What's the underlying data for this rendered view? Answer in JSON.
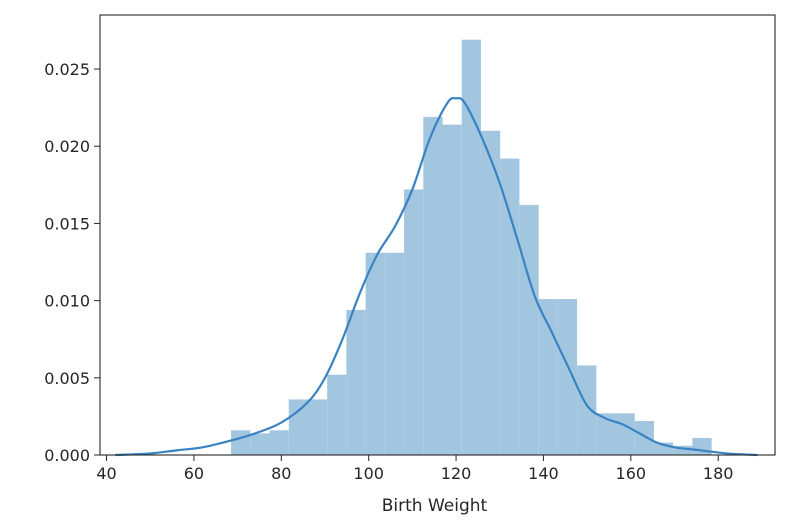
{
  "chart_data": {
    "type": "bar",
    "title": "",
    "xlabel": "Birth Weight",
    "ylabel": "",
    "xlim": [
      38.5,
      193
    ],
    "ylim": [
      0,
      0.0285
    ],
    "xticks": [
      40,
      60,
      80,
      100,
      120,
      140,
      160,
      180
    ],
    "yticks": [
      0.0,
      0.005,
      0.01,
      0.015,
      0.02,
      0.025
    ],
    "ytick_labels": [
      "0.000",
      "0.005",
      "0.010",
      "0.015",
      "0.020",
      "0.025"
    ],
    "grid": false,
    "legend": "none",
    "colors": {
      "bars": "#a3c6e0",
      "kde": "#3a83c2",
      "axes": "#262626"
    },
    "histogram": {
      "bin_edges": [
        68.5,
        72.9,
        77.3,
        81.7,
        86.1,
        90.5,
        94.9,
        99.3,
        103.7,
        108.1,
        112.5,
        116.9,
        121.3,
        125.7,
        130.1,
        134.5,
        138.9,
        143.3,
        147.7,
        152.1,
        156.5,
        160.9,
        165.3,
        169.7,
        174.1,
        178.5
      ],
      "densities": [
        0.0016,
        0.0014,
        0.0016,
        0.0036,
        0.0036,
        0.0052,
        0.0094,
        0.0131,
        0.0131,
        0.0172,
        0.0219,
        0.0214,
        0.0269,
        0.021,
        0.0192,
        0.0162,
        0.0101,
        0.0101,
        0.0058,
        0.0027,
        0.0027,
        0.0022,
        0.0008,
        0.0006,
        0.0011
      ]
    },
    "kde": {
      "x": [
        42,
        50,
        56,
        62,
        68,
        74,
        80,
        86,
        90,
        94,
        98,
        102,
        106,
        110,
        114,
        118,
        120,
        122,
        126,
        130,
        134,
        138,
        142,
        146,
        150,
        154,
        158,
        162,
        166,
        170,
        176,
        182,
        189
      ],
      "y": [
        0.0,
        0.0001,
        0.0003,
        0.0005,
        0.0009,
        0.0014,
        0.0021,
        0.0034,
        0.005,
        0.0075,
        0.0105,
        0.013,
        0.0148,
        0.0172,
        0.0205,
        0.0228,
        0.0231,
        0.0228,
        0.0205,
        0.0176,
        0.014,
        0.0103,
        0.0079,
        0.0055,
        0.0032,
        0.0024,
        0.002,
        0.0014,
        0.0008,
        0.0005,
        0.0003,
        0.0001,
        0.0
      ]
    }
  }
}
